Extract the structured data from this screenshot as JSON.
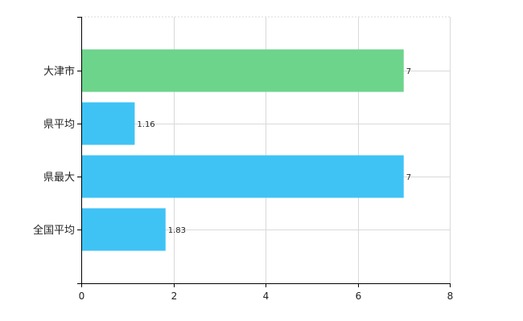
{
  "chart_data": {
    "type": "bar",
    "orientation": "horizontal",
    "categories": [
      "大津市",
      "県平均",
      "県最大",
      "全国平均"
    ],
    "values": [
      7,
      1.16,
      7,
      1.83
    ],
    "value_labels": [
      "7",
      "1.16",
      "7",
      "1.83"
    ],
    "bar_colors": [
      "#6dd48c",
      "#3fc3f5",
      "#3fc3f5",
      "#3fc3f5"
    ],
    "xlim": [
      0,
      8
    ],
    "xticks": [
      0,
      2,
      4,
      6,
      8
    ],
    "xtick_labels": [
      "0",
      "2",
      "4",
      "6",
      "8"
    ],
    "grid": true,
    "grid_color": "#d9d9d9",
    "axis_color": "#000000"
  }
}
